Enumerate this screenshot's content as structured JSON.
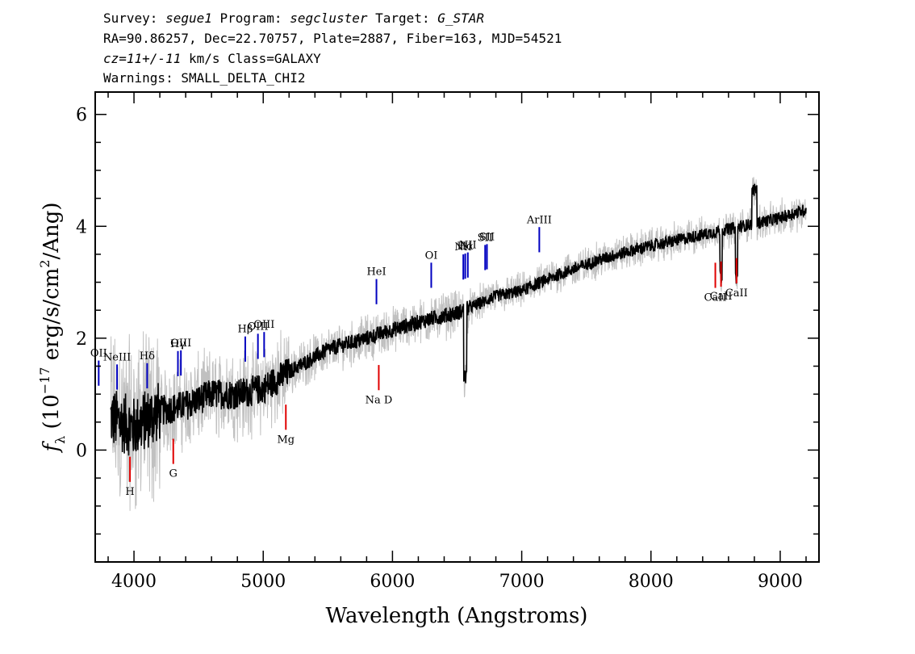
{
  "header": {
    "line1": {
      "survey_label": "Survey: ",
      "survey": "segue1",
      "program_label": " Program: ",
      "program": "segcluster",
      "target_label": " Target: ",
      "target": "G_STAR"
    },
    "line2": "RA=90.86257, Dec=22.70757, Plate=2887, Fiber=163, MJD=54521",
    "line3": {
      "cz": "cz=11+/-11",
      "rest": " km/s Class=GALAXY"
    },
    "line4": "Warnings: SMALL_DELTA_CHI2"
  },
  "chart_data": {
    "type": "line",
    "xlabel": "Wavelength (Angstroms)",
    "ylabel": "f_λ (10^-17 erg/s/cm^2/Ang)",
    "xlim": [
      3700,
      9300
    ],
    "ylim": [
      -2.0,
      6.4
    ],
    "xticks": [
      4000,
      5000,
      6000,
      7000,
      8000,
      9000
    ],
    "yticks": [
      0,
      2,
      4,
      6
    ],
    "series": [
      {
        "role": "flux",
        "color": "#000000",
        "x": [
          3800,
          3900,
          4000,
          4200,
          4400,
          4600,
          4800,
          5000,
          5200,
          5500,
          5800,
          6000,
          6300,
          6500,
          6600,
          6800,
          7000,
          7300,
          7600,
          7900,
          8200,
          8500,
          8800,
          9000,
          9200
        ],
        "y": [
          0.6,
          0.5,
          0.4,
          0.7,
          0.8,
          1.0,
          1.0,
          1.1,
          1.4,
          1.8,
          2.0,
          2.15,
          2.35,
          2.45,
          2.55,
          2.75,
          2.85,
          3.15,
          3.4,
          3.6,
          3.75,
          3.9,
          4.05,
          4.15,
          4.3
        ]
      },
      {
        "role": "noise",
        "color": "#c0c0c0"
      }
    ],
    "emission_lines": [
      {
        "label": "OII",
        "x": 3727
      },
      {
        "label": "NeIII",
        "x": 3869
      },
      {
        "label": "Hδ",
        "x": 4102
      },
      {
        "label": "Hγ",
        "x": 4340
      },
      {
        "label": "OIII",
        "x": 4363
      },
      {
        "label": "Hβ",
        "x": 4861
      },
      {
        "label": "OIII",
        "x": 4959
      },
      {
        "label": "OIII",
        "x": 5007
      },
      {
        "label": "HeI",
        "x": 5876
      },
      {
        "label": "OI",
        "x": 6300
      },
      {
        "label": "NII",
        "x": 6548
      },
      {
        "label": "Hα",
        "x": 6563
      },
      {
        "label": "NII",
        "x": 6583
      },
      {
        "label": "SII",
        "x": 6717
      },
      {
        "label": "SII",
        "x": 6731
      },
      {
        "label": "ArIII",
        "x": 7136
      }
    ],
    "absorption_lines": [
      {
        "label": "H",
        "x": 3969
      },
      {
        "label": "G",
        "x": 4304
      },
      {
        "label": "Mg",
        "x": 5175
      },
      {
        "label": "Na D",
        "x": 5894
      },
      {
        "label": "CaII",
        "x": 8498
      },
      {
        "label": "CaII",
        "x": 8542
      },
      {
        "label": "CaII",
        "x": 8662
      }
    ],
    "colors": {
      "emission": "#0000c0",
      "absorption": "#e00000",
      "flux": "#000000",
      "noise": "#c0c0c0"
    }
  }
}
